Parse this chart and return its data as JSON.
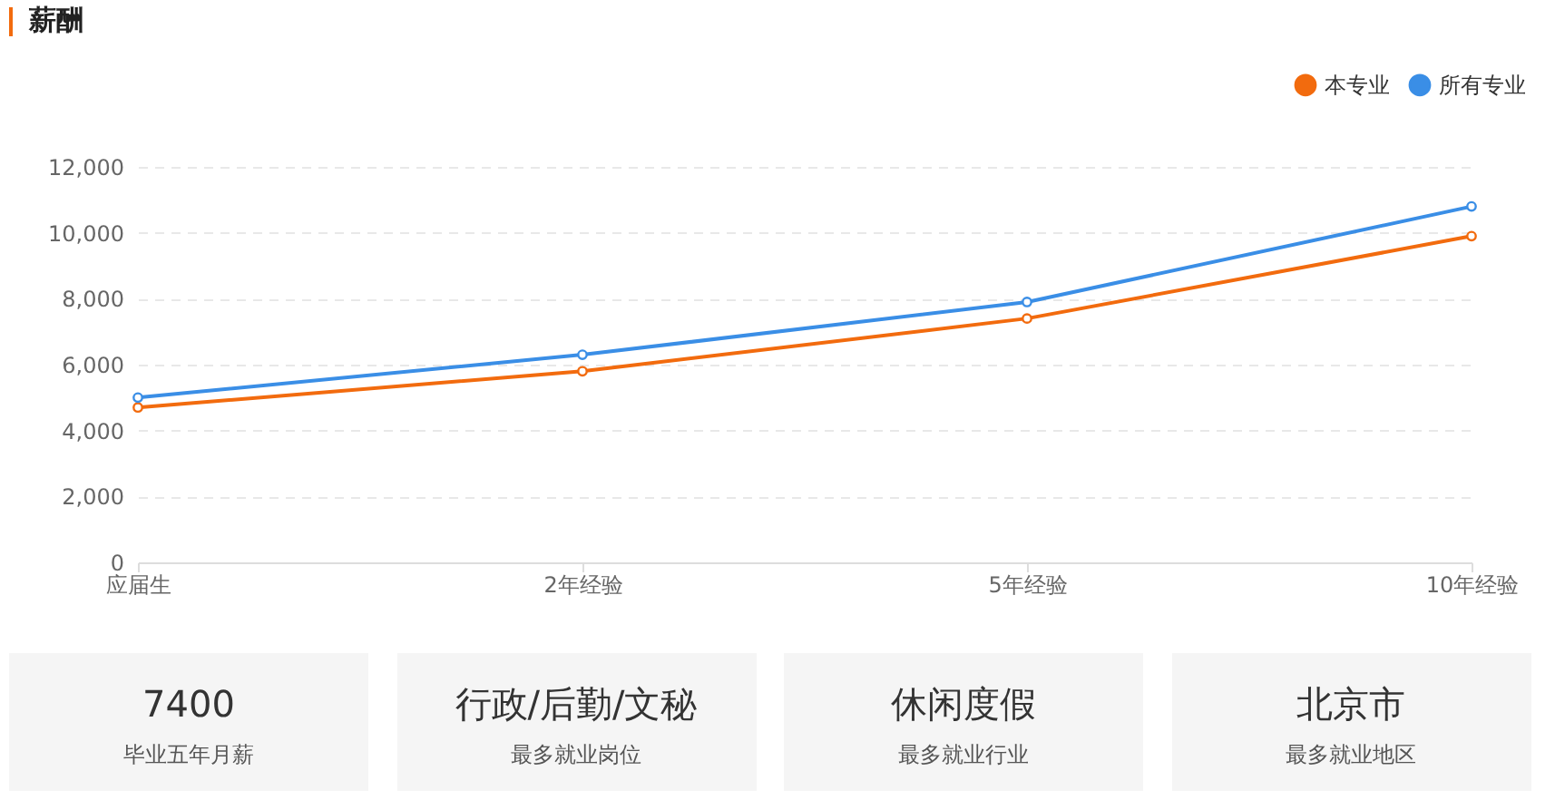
{
  "chart_data": [
    {
      "type": "line",
      "title": "薪酬",
      "categories": [
        "应届生",
        "2年经验",
        "5年经验",
        "10年经验"
      ],
      "series": [
        {
          "name": "本专业",
          "color": "#f26b0e",
          "values": [
            4700,
            5800,
            7400,
            9900
          ]
        },
        {
          "name": "所有专业",
          "color": "#3a8ee6",
          "values": [
            5000,
            6300,
            7900,
            10800
          ]
        }
      ],
      "ylim": [
        0,
        12000
      ],
      "yticks": [
        {
          "value": 0,
          "label": "0"
        },
        {
          "value": 2000,
          "label": "2,000"
        },
        {
          "value": 4000,
          "label": "4,000"
        },
        {
          "value": 6000,
          "label": "6,000"
        },
        {
          "value": 8000,
          "label": "8,000"
        },
        {
          "value": 10000,
          "label": "10,000"
        },
        {
          "value": 12000,
          "label": "12,000"
        }
      ],
      "grid": "y",
      "legend": "top right",
      "marker": "circle",
      "line_style": "solid"
    },
    {
      "type": "other",
      "annotations": [
        "7400",
        "毕业五年月薪",
        "行政/后勤/文秘",
        "最多就业岗位",
        "休闲度假",
        "最多就业行业",
        "北京市",
        "最多就业地区"
      ]
    }
  ]
}
